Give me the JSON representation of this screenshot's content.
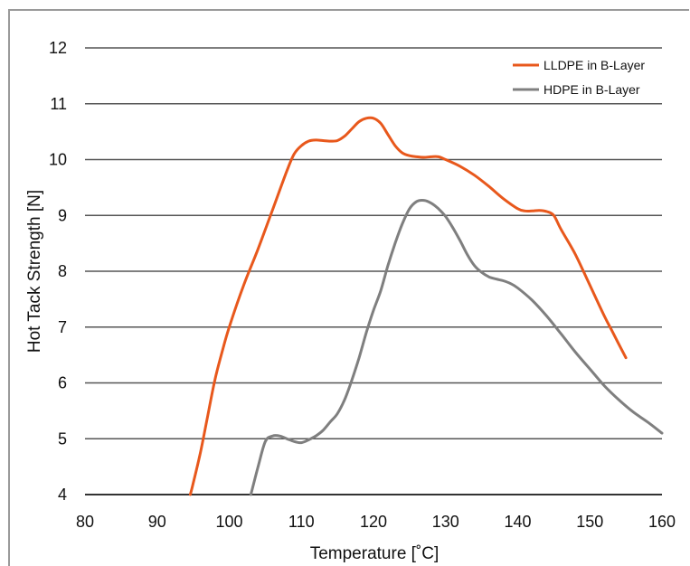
{
  "chart_data": {
    "type": "line",
    "title": "",
    "xlabel": "Temperature [˚C]",
    "ylabel": "Hot Tack Strength [N]",
    "xlim": [
      80,
      160
    ],
    "ylim": [
      4,
      12
    ],
    "xticks": [
      80,
      90,
      100,
      110,
      120,
      130,
      140,
      150,
      160
    ],
    "yticks": [
      4,
      5,
      6,
      7,
      8,
      9,
      10,
      11,
      12
    ],
    "grid": "horizontal",
    "legend_position": "top-right",
    "series": [
      {
        "name": "LLDPE in B-Layer",
        "color": "#e8581c",
        "points": [
          [
            94.6,
            4.0
          ],
          [
            95,
            4.2
          ],
          [
            96,
            4.75
          ],
          [
            97,
            5.4
          ],
          [
            98,
            6.05
          ],
          [
            99,
            6.55
          ],
          [
            100,
            7.0
          ],
          [
            102,
            7.75
          ],
          [
            104,
            8.4
          ],
          [
            106,
            9.1
          ],
          [
            108,
            9.8
          ],
          [
            109,
            10.1
          ],
          [
            110,
            10.25
          ],
          [
            111,
            10.33
          ],
          [
            112,
            10.35
          ],
          [
            113,
            10.34
          ],
          [
            114,
            10.33
          ],
          [
            115,
            10.34
          ],
          [
            116,
            10.42
          ],
          [
            117,
            10.55
          ],
          [
            118,
            10.68
          ],
          [
            119,
            10.74
          ],
          [
            120,
            10.74
          ],
          [
            121,
            10.65
          ],
          [
            122,
            10.45
          ],
          [
            123,
            10.25
          ],
          [
            124,
            10.12
          ],
          [
            125,
            10.07
          ],
          [
            126,
            10.05
          ],
          [
            127,
            10.04
          ],
          [
            128,
            10.05
          ],
          [
            129,
            10.05
          ],
          [
            130,
            10.0
          ],
          [
            132,
            9.88
          ],
          [
            134,
            9.72
          ],
          [
            136,
            9.52
          ],
          [
            138,
            9.3
          ],
          [
            140,
            9.12
          ],
          [
            141,
            9.08
          ],
          [
            142,
            9.08
          ],
          [
            143,
            9.09
          ],
          [
            144,
            9.07
          ],
          [
            145,
            9.0
          ],
          [
            146,
            8.75
          ],
          [
            148,
            8.3
          ],
          [
            150,
            7.75
          ],
          [
            152,
            7.2
          ],
          [
            153,
            6.95
          ],
          [
            154,
            6.7
          ],
          [
            155,
            6.45
          ]
        ]
      },
      {
        "name": "HDPE in B-Layer",
        "color": "#7f7f7f",
        "points": [
          [
            103,
            4.0
          ],
          [
            104,
            4.5
          ],
          [
            105,
            4.95
          ],
          [
            106,
            5.05
          ],
          [
            107,
            5.05
          ],
          [
            108,
            5.0
          ],
          [
            109,
            4.95
          ],
          [
            110,
            4.93
          ],
          [
            111,
            4.98
          ],
          [
            112,
            5.05
          ],
          [
            113,
            5.15
          ],
          [
            114,
            5.3
          ],
          [
            115,
            5.45
          ],
          [
            116,
            5.7
          ],
          [
            117,
            6.05
          ],
          [
            118,
            6.45
          ],
          [
            119,
            6.9
          ],
          [
            120,
            7.3
          ],
          [
            121,
            7.65
          ],
          [
            122,
            8.1
          ],
          [
            123,
            8.5
          ],
          [
            124,
            8.85
          ],
          [
            125,
            9.12
          ],
          [
            126,
            9.25
          ],
          [
            127,
            9.27
          ],
          [
            128,
            9.22
          ],
          [
            129,
            9.12
          ],
          [
            130,
            8.98
          ],
          [
            131,
            8.78
          ],
          [
            132,
            8.55
          ],
          [
            133,
            8.3
          ],
          [
            134,
            8.1
          ],
          [
            135,
            7.98
          ],
          [
            136,
            7.9
          ],
          [
            137,
            7.86
          ],
          [
            138,
            7.83
          ],
          [
            139,
            7.78
          ],
          [
            140,
            7.7
          ],
          [
            142,
            7.48
          ],
          [
            144,
            7.2
          ],
          [
            146,
            6.88
          ],
          [
            148,
            6.55
          ],
          [
            150,
            6.25
          ],
          [
            152,
            5.95
          ],
          [
            154,
            5.7
          ],
          [
            156,
            5.48
          ],
          [
            158,
            5.3
          ],
          [
            160,
            5.1
          ]
        ]
      }
    ]
  }
}
